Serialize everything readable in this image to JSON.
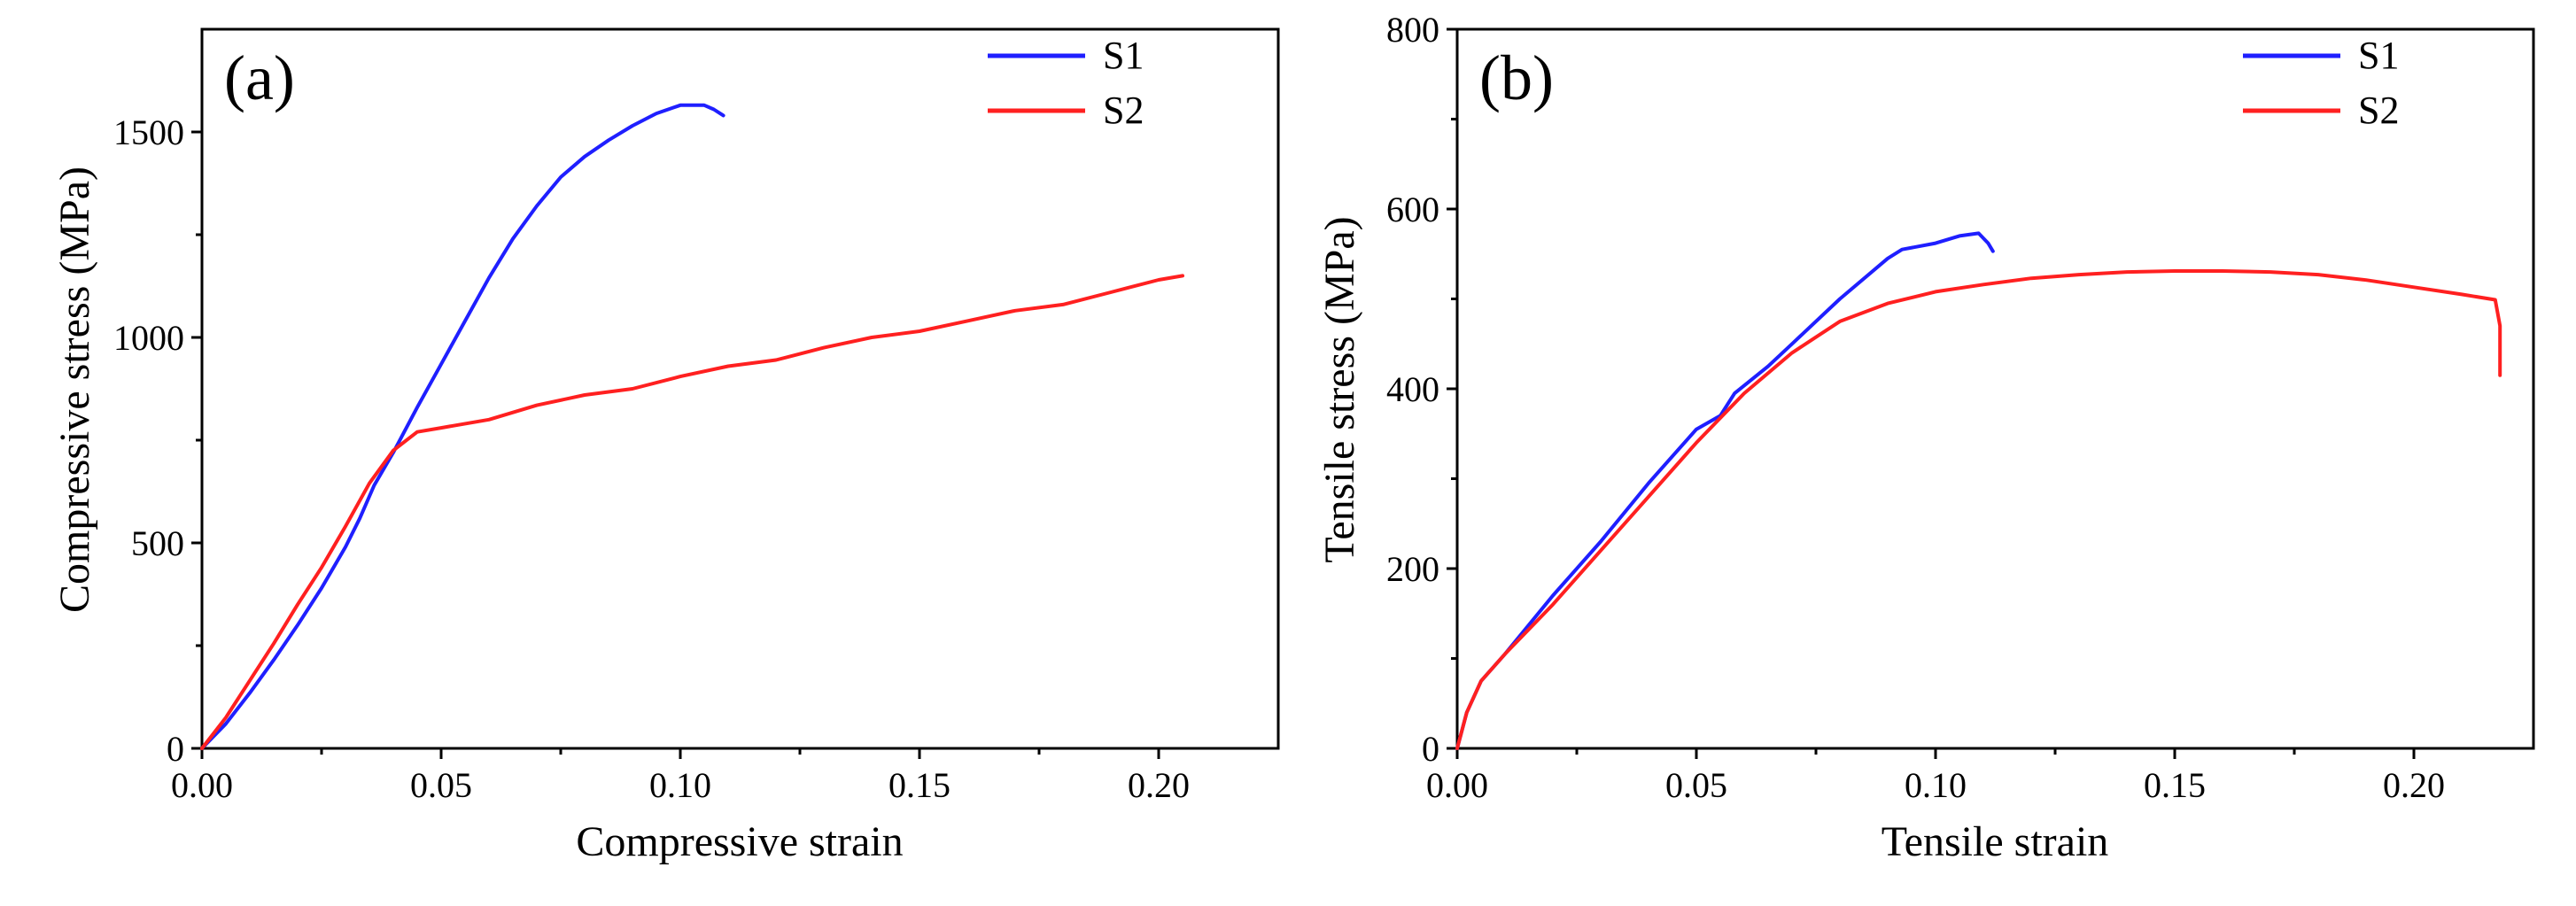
{
  "chart_data": [
    {
      "type": "line",
      "panel_label": "(a)",
      "xlabel": "Compressive strain",
      "ylabel": "Compressive stress (MPa)",
      "xlim": [
        0,
        0.225
      ],
      "ylim": [
        0,
        1750
      ],
      "xticks": [
        0.0,
        0.05,
        0.1,
        0.15,
        0.2
      ],
      "xtick_labels": [
        "0.00",
        "0.05",
        "0.10",
        "0.15",
        "0.20"
      ],
      "yticks": [
        0,
        500,
        1000,
        1500
      ],
      "ytick_labels": [
        "0",
        "500",
        "1000",
        "1500"
      ],
      "legend_position": "top-right",
      "series": [
        {
          "name": "S1",
          "color": "#1f1fff",
          "points": [
            [
              0,
              0
            ],
            [
              0.005,
              60
            ],
            [
              0.01,
              135
            ],
            [
              0.015,
              215
            ],
            [
              0.02,
              300
            ],
            [
              0.025,
              390
            ],
            [
              0.03,
              490
            ],
            [
              0.033,
              560
            ],
            [
              0.036,
              640
            ],
            [
              0.04,
              720
            ],
            [
              0.045,
              830
            ],
            [
              0.05,
              935
            ],
            [
              0.055,
              1040
            ],
            [
              0.06,
              1145
            ],
            [
              0.065,
              1240
            ],
            [
              0.07,
              1320
            ],
            [
              0.075,
              1390
            ],
            [
              0.08,
              1440
            ],
            [
              0.085,
              1480
            ],
            [
              0.09,
              1515
            ],
            [
              0.095,
              1545
            ],
            [
              0.1,
              1565
            ],
            [
              0.105,
              1565
            ],
            [
              0.107,
              1555
            ],
            [
              0.109,
              1540
            ]
          ]
        },
        {
          "name": "S2",
          "color": "#ff2020",
          "points": [
            [
              0,
              0
            ],
            [
              0.005,
              75
            ],
            [
              0.01,
              165
            ],
            [
              0.015,
              255
            ],
            [
              0.02,
              350
            ],
            [
              0.025,
              440
            ],
            [
              0.03,
              540
            ],
            [
              0.035,
              645
            ],
            [
              0.04,
              725
            ],
            [
              0.045,
              770
            ],
            [
              0.05,
              780
            ],
            [
              0.06,
              800
            ],
            [
              0.07,
              835
            ],
            [
              0.08,
              860
            ],
            [
              0.09,
              875
            ],
            [
              0.1,
              905
            ],
            [
              0.11,
              930
            ],
            [
              0.12,
              945
            ],
            [
              0.13,
              975
            ],
            [
              0.14,
              1000
            ],
            [
              0.15,
              1015
            ],
            [
              0.16,
              1040
            ],
            [
              0.17,
              1065
            ],
            [
              0.18,
              1080
            ],
            [
              0.19,
              1110
            ],
            [
              0.2,
              1140
            ],
            [
              0.205,
              1150
            ]
          ]
        }
      ]
    },
    {
      "type": "line",
      "panel_label": "(b)",
      "xlabel": "Tensile strain",
      "ylabel": "Tensile stress (MPa)",
      "xlim": [
        0,
        0.225
      ],
      "ylim": [
        0,
        800
      ],
      "xticks": [
        0.0,
        0.05,
        0.1,
        0.15,
        0.2
      ],
      "xtick_labels": [
        "0.00",
        "0.05",
        "0.10",
        "0.15",
        "0.20"
      ],
      "yticks": [
        0,
        200,
        400,
        600,
        800
      ],
      "ytick_labels": [
        "0",
        "200",
        "400",
        "600",
        "800"
      ],
      "legend_position": "top-right",
      "series": [
        {
          "name": "S1",
          "color": "#1f1fff",
          "points": [
            [
              0,
              0
            ],
            [
              0.002,
              40
            ],
            [
              0.005,
              75
            ],
            [
              0.01,
              105
            ],
            [
              0.02,
              170
            ],
            [
              0.03,
              230
            ],
            [
              0.04,
              295
            ],
            [
              0.05,
              355
            ],
            [
              0.055,
              370
            ],
            [
              0.058,
              395
            ],
            [
              0.065,
              425
            ],
            [
              0.07,
              450
            ],
            [
              0.08,
              500
            ],
            [
              0.09,
              545
            ],
            [
              0.093,
              555
            ],
            [
              0.1,
              562
            ],
            [
              0.105,
              570
            ],
            [
              0.109,
              573
            ],
            [
              0.111,
              562
            ],
            [
              0.112,
              553
            ]
          ]
        },
        {
          "name": "S2",
          "color": "#ff2020",
          "points": [
            [
              0,
              0
            ],
            [
              0.002,
              40
            ],
            [
              0.005,
              75
            ],
            [
              0.01,
              105
            ],
            [
              0.02,
              160
            ],
            [
              0.03,
              220
            ],
            [
              0.04,
              280
            ],
            [
              0.05,
              340
            ],
            [
              0.06,
              395
            ],
            [
              0.07,
              440
            ],
            [
              0.08,
              475
            ],
            [
              0.09,
              495
            ],
            [
              0.1,
              508
            ],
            [
              0.11,
              516
            ],
            [
              0.12,
              523
            ],
            [
              0.13,
              527
            ],
            [
              0.14,
              530
            ],
            [
              0.15,
              531
            ],
            [
              0.16,
              531
            ],
            [
              0.17,
              530
            ],
            [
              0.18,
              527
            ],
            [
              0.19,
              521
            ],
            [
              0.2,
              513
            ],
            [
              0.21,
              505
            ],
            [
              0.217,
              499
            ],
            [
              0.218,
              470
            ],
            [
              0.218,
              415
            ]
          ]
        }
      ]
    }
  ]
}
